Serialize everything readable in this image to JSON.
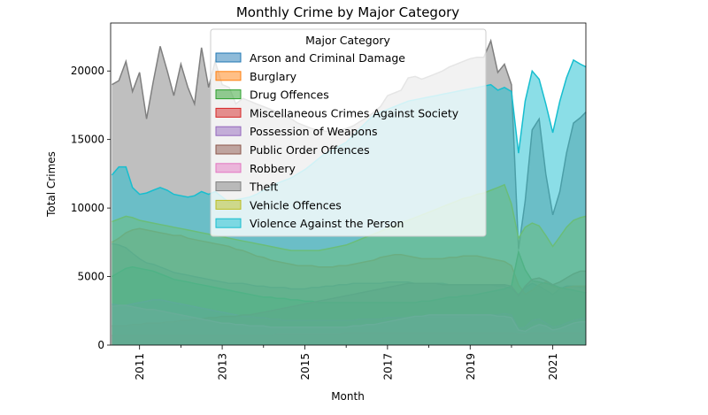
{
  "chart_data": {
    "type": "area",
    "title": "Monthly Crime by Major Category",
    "xlabel": "Month",
    "ylabel": "Total Crimes",
    "xlim": [
      2010.3,
      2021.8
    ],
    "ylim": [
      0,
      23500
    ],
    "x_ticks": [
      2011,
      2013,
      2015,
      2017,
      2019,
      2021
    ],
    "y_ticks": [
      0,
      5000,
      10000,
      15000,
      20000
    ],
    "stacked": false,
    "grid": false,
    "legend_title": "Major Category",
    "legend_position": "top-center",
    "x": [
      2010.33,
      2010.5,
      2010.67,
      2010.83,
      2011.0,
      2011.17,
      2011.33,
      2011.5,
      2011.67,
      2011.83,
      2012.0,
      2012.17,
      2012.33,
      2012.5,
      2012.67,
      2012.83,
      2013.0,
      2013.17,
      2013.33,
      2013.5,
      2013.67,
      2013.83,
      2014.0,
      2014.17,
      2014.33,
      2014.5,
      2014.67,
      2014.83,
      2015.0,
      2015.17,
      2015.33,
      2015.5,
      2015.67,
      2015.83,
      2016.0,
      2016.17,
      2016.33,
      2016.5,
      2016.67,
      2016.83,
      2017.0,
      2017.17,
      2017.33,
      2017.5,
      2017.67,
      2017.83,
      2018.0,
      2018.17,
      2018.33,
      2018.5,
      2018.67,
      2018.83,
      2019.0,
      2019.17,
      2019.33,
      2019.5,
      2019.67,
      2019.83,
      2020.0,
      2020.17,
      2020.33,
      2020.5,
      2020.67,
      2020.83,
      2021.0,
      2021.17,
      2021.33,
      2021.5,
      2021.67,
      2021.8
    ],
    "series": [
      {
        "name": "Arson and Criminal Damage",
        "color": "#1f77b4",
        "values": [
          7400,
          7300,
          7100,
          6700,
          6300,
          6000,
          5900,
          5700,
          5500,
          5300,
          5200,
          5100,
          5000,
          4900,
          4800,
          4700,
          4600,
          4500,
          4500,
          4500,
          4400,
          4300,
          4300,
          4200,
          4200,
          4200,
          4100,
          4100,
          4100,
          4200,
          4200,
          4300,
          4300,
          4400,
          4400,
          4500,
          4500,
          4500,
          4500,
          4500,
          4600,
          4600,
          4600,
          4600,
          4500,
          4500,
          4500,
          4500,
          4500,
          4400,
          4400,
          4400,
          4400,
          4400,
          4400,
          4400,
          4300,
          4300,
          4100,
          3700,
          4200,
          4500,
          4300,
          4000,
          3700,
          4100,
          4300,
          4300,
          4200,
          4200
        ]
      },
      {
        "name": "Burglary",
        "color": "#ff7f0e",
        "values": [
          7500,
          7800,
          8200,
          8400,
          8500,
          8400,
          8300,
          8200,
          8100,
          8000,
          8000,
          7800,
          7700,
          7600,
          7500,
          7400,
          7300,
          7200,
          7000,
          6900,
          6700,
          6500,
          6400,
          6200,
          6100,
          6000,
          5900,
          5800,
          5800,
          5800,
          5700,
          5700,
          5700,
          5800,
          5800,
          5900,
          6000,
          6100,
          6200,
          6400,
          6500,
          6600,
          6600,
          6500,
          6400,
          6300,
          6300,
          6300,
          6300,
          6400,
          6400,
          6500,
          6500,
          6500,
          6400,
          6300,
          6200,
          6100,
          5800,
          4400,
          3700,
          4000,
          4400,
          4600,
          4300,
          4100,
          4200,
          4300,
          4300,
          4300
        ]
      },
      {
        "name": "Drug Offences",
        "color": "#2ca02c",
        "values": [
          5000,
          5300,
          5600,
          5700,
          5600,
          5500,
          5400,
          5200,
          5000,
          4800,
          4700,
          4600,
          4500,
          4400,
          4300,
          4200,
          4100,
          4000,
          3900,
          3800,
          3700,
          3600,
          3500,
          3500,
          3400,
          3400,
          3300,
          3300,
          3200,
          3200,
          3100,
          3100,
          3100,
          3100,
          3100,
          3100,
          3100,
          3100,
          3100,
          3100,
          3100,
          3100,
          3100,
          3100,
          3100,
          3200,
          3200,
          3300,
          3400,
          3500,
          3500,
          3600,
          3600,
          3700,
          3800,
          3900,
          4000,
          4100,
          4300,
          6800,
          5500,
          4700,
          4600,
          4500,
          4400,
          4200,
          4100,
          4000,
          3900,
          3800
        ]
      },
      {
        "name": "Miscellaneous Crimes Against Society",
        "color": "#d62728",
        "values": [
          700,
          700,
          700,
          700,
          700,
          700,
          700,
          700,
          700,
          700,
          700,
          700,
          700,
          700,
          700,
          700,
          700,
          700,
          700,
          700,
          700,
          700,
          700,
          700,
          800,
          800,
          800,
          800,
          800,
          800,
          800,
          800,
          800,
          800,
          900,
          900,
          900,
          900,
          900,
          900,
          900,
          900,
          900,
          900,
          900,
          900,
          900,
          900,
          900,
          900,
          900,
          900,
          900,
          900,
          900,
          900,
          900,
          900,
          900,
          800,
          800,
          900,
          900,
          900,
          900,
          900,
          900,
          900,
          900,
          900
        ]
      },
      {
        "name": "Possession of Weapons",
        "color": "#9467bd",
        "values": [
          3000,
          2900,
          2900,
          3000,
          3100,
          3200,
          3300,
          3300,
          3200,
          3100,
          3000,
          2900,
          2800,
          2700,
          2600,
          2500,
          2400,
          2300,
          2200,
          2100,
          2100,
          2000,
          2000,
          1900,
          1900,
          1800,
          1800,
          1800,
          1800,
          1800,
          1800,
          1800,
          1800,
          1800,
          1800,
          1800,
          1900,
          1900,
          1900,
          1900,
          2000,
          2000,
          2000,
          2000,
          2100,
          2100,
          2100,
          2100,
          2100,
          2100,
          2100,
          2100,
          2100,
          2200,
          2200,
          2200,
          2200,
          2300,
          2200,
          1200,
          1300,
          1800,
          1900,
          1600,
          1300,
          1400,
          1600,
          1800,
          1900,
          2000
        ]
      },
      {
        "name": "Public Order Offences",
        "color": "#8c564b",
        "values": [
          1400,
          1400,
          1400,
          1500,
          1500,
          1600,
          1600,
          1600,
          1700,
          1700,
          1800,
          1800,
          1900,
          1900,
          2000,
          2000,
          2100,
          2100,
          2100,
          2200,
          2200,
          2300,
          2400,
          2500,
          2600,
          2700,
          2800,
          2900,
          3000,
          3100,
          3200,
          3300,
          3400,
          3500,
          3600,
          3700,
          3800,
          3900,
          4000,
          4100,
          4200,
          4300,
          4400,
          4500,
          4500,
          4500,
          4500,
          4500,
          4400,
          4400,
          4400,
          4400,
          4400,
          4400,
          4400,
          4400,
          4400,
          4400,
          4300,
          3600,
          4300,
          4800,
          4900,
          4700,
          4400,
          4600,
          4900,
          5200,
          5400,
          5400
        ]
      },
      {
        "name": "Robbery",
        "color": "#e377c2",
        "values": [
          2800,
          2900,
          2900,
          2800,
          2700,
          2600,
          2600,
          2500,
          2400,
          2300,
          2200,
          2100,
          2000,
          1900,
          1800,
          1700,
          1600,
          1600,
          1500,
          1500,
          1400,
          1400,
          1400,
          1300,
          1300,
          1300,
          1300,
          1300,
          1300,
          1300,
          1300,
          1300,
          1300,
          1300,
          1300,
          1400,
          1400,
          1500,
          1500,
          1600,
          1700,
          1800,
          1900,
          2000,
          2100,
          2100,
          2200,
          2200,
          2200,
          2200,
          2200,
          2200,
          2200,
          2200,
          2200,
          2200,
          2100,
          2100,
          2000,
          1100,
          1000,
          1300,
          1500,
          1400,
          1100,
          1200,
          1400,
          1600,
          1700,
          1700
        ]
      },
      {
        "name": "Theft",
        "color": "#7f7f7f",
        "values": [
          19000,
          19300,
          20700,
          18500,
          19900,
          16500,
          19200,
          21800,
          20000,
          18200,
          20500,
          18800,
          17600,
          21700,
          18800,
          20700,
          19000,
          18800,
          17600,
          18000,
          17800,
          17600,
          17400,
          17200,
          17000,
          16700,
          16500,
          16200,
          16000,
          15800,
          15700,
          15600,
          15600,
          15700,
          15800,
          16000,
          16300,
          16600,
          17000,
          17400,
          18200,
          18400,
          18600,
          19500,
          19600,
          19400,
          19600,
          19800,
          20000,
          20300,
          20500,
          20700,
          20900,
          21000,
          21000,
          22200,
          19900,
          20500,
          19000,
          7000,
          10500,
          15700,
          16500,
          12500,
          9500,
          11200,
          14000,
          16200,
          16600,
          17000
        ]
      },
      {
        "name": "Vehicle Offences",
        "color": "#bcbd22",
        "values": [
          9000,
          9200,
          9400,
          9300,
          9100,
          9000,
          8900,
          8800,
          8700,
          8600,
          8500,
          8400,
          8300,
          8200,
          8100,
          8000,
          7900,
          7800,
          7700,
          7600,
          7500,
          7400,
          7300,
          7200,
          7100,
          7000,
          6900,
          6900,
          6900,
          6900,
          6900,
          7000,
          7100,
          7200,
          7300,
          7500,
          7700,
          7900,
          8100,
          8300,
          8500,
          8700,
          8900,
          9100,
          9300,
          9500,
          9700,
          9900,
          10100,
          10300,
          10500,
          10700,
          10800,
          11000,
          11100,
          11300,
          11500,
          11700,
          10300,
          7800,
          8600,
          8900,
          8700,
          8000,
          7200,
          7900,
          8600,
          9100,
          9300,
          9400
        ]
      },
      {
        "name": "Violence Against the Person",
        "color": "#17becf",
        "values": [
          12400,
          13000,
          13000,
          11500,
          11000,
          11100,
          11300,
          11500,
          11300,
          11000,
          10900,
          10800,
          10900,
          11200,
          11000,
          11200,
          10800,
          10400,
          10600,
          10700,
          10800,
          11000,
          11300,
          11500,
          11800,
          12000,
          12200,
          12500,
          12800,
          13200,
          13600,
          14000,
          14200,
          14500,
          14800,
          15300,
          15800,
          16300,
          16800,
          17000,
          17200,
          17400,
          17600,
          17800,
          17900,
          18000,
          18100,
          18200,
          18300,
          18400,
          18500,
          18600,
          18700,
          18800,
          18900,
          19000,
          18600,
          18800,
          18500,
          14000,
          17800,
          20000,
          19400,
          17600,
          15500,
          17800,
          19500,
          20800,
          20500,
          20300
        ]
      }
    ]
  }
}
